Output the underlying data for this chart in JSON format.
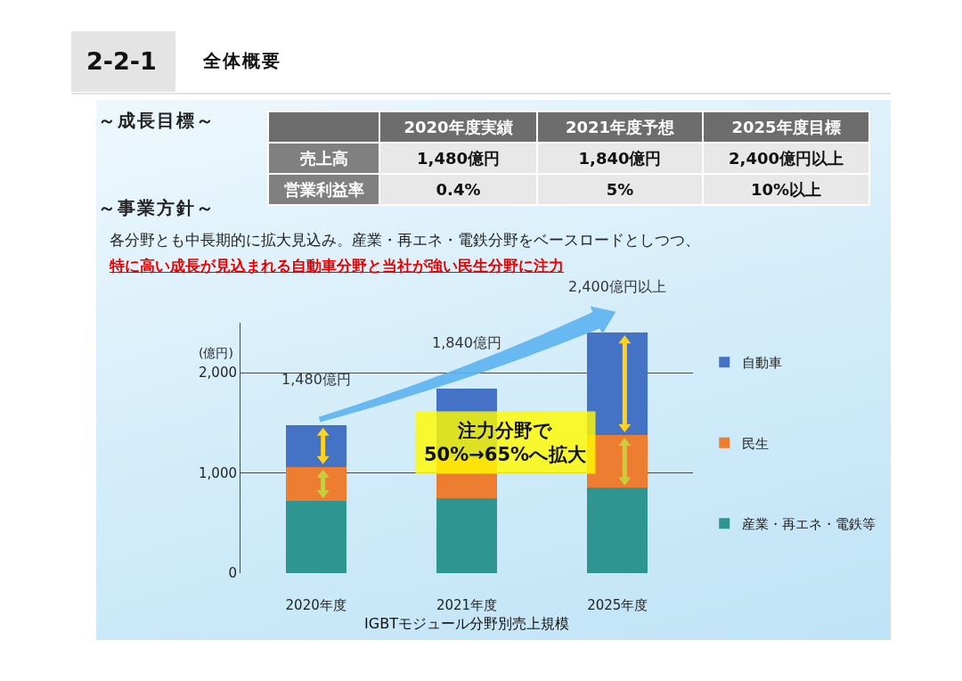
{
  "chart_data": [
    {
      "type": "other",
      "title": "2-2-1",
      "subtitle": "全体概要",
      "annotations": [
        "～成長目標～",
        "2020年度実績",
        "2021年度予想",
        "2025年度目標",
        "売上高",
        "1,480億円",
        "1,840億円",
        "2,400億円以上",
        "営業利益率",
        "0.4%",
        "5%",
        "10%以上",
        "～事業方針～",
        "各分野とも中長期的に拡大見込み。産業・再エネ・電鉄分野をベースロードとしつつ、",
        "特に高い成長が見込まれる自動車分野と当社が強い民生分野に注力"
      ]
    },
    {
      "type": "bar",
      "stacked": true,
      "categories": [
        "2020年度",
        "2021年度",
        "2025年度"
      ],
      "series": [
        {
          "name": "産業・再エネ・電鉄等",
          "color": "#2f9591",
          "values": [
            720,
            750,
            850
          ]
        },
        {
          "name": "民生",
          "color": "#ed7d31",
          "values": [
            340,
            400,
            530
          ]
        },
        {
          "name": "自動車",
          "color": "#4472c4",
          "values": [
            420,
            690,
            1020
          ]
        }
      ],
      "totals": [
        "1,480億円",
        "1,840億円",
        "2,400億円以上"
      ],
      "ylim": [
        0,
        2500
      ],
      "yticks": [
        0,
        {
          "value": 1000,
          "label": "1,000"
        },
        {
          "value": 2000,
          "label": "2,000"
        }
      ],
      "grid": "y",
      "legend": "right",
      "ylabel": "(億円)",
      "xlabel": "IGBTモジュール分野別売上規模",
      "annotations": [
        "注力分野で\n50%→65%へ拡大"
      ]
    }
  ]
}
